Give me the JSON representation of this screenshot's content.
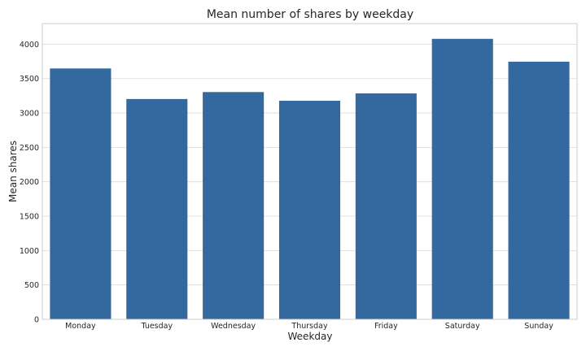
{
  "chart_data": {
    "type": "bar",
    "title": "Mean number of shares by weekday",
    "xlabel": "Weekday",
    "ylabel": "Mean shares",
    "categories": [
      "Monday",
      "Tuesday",
      "Wednesday",
      "Thursday",
      "Friday",
      "Saturday",
      "Sunday"
    ],
    "values": [
      3647,
      3203,
      3304,
      3178,
      3285,
      4078,
      3746
    ],
    "ylim": [
      0,
      4300
    ],
    "yticks": [
      "0",
      "500",
      "1000",
      "1500",
      "2000",
      "2500",
      "3000",
      "3500",
      "4000"
    ],
    "bar_color": "#3469a0",
    "grid": true,
    "legend": "none"
  }
}
